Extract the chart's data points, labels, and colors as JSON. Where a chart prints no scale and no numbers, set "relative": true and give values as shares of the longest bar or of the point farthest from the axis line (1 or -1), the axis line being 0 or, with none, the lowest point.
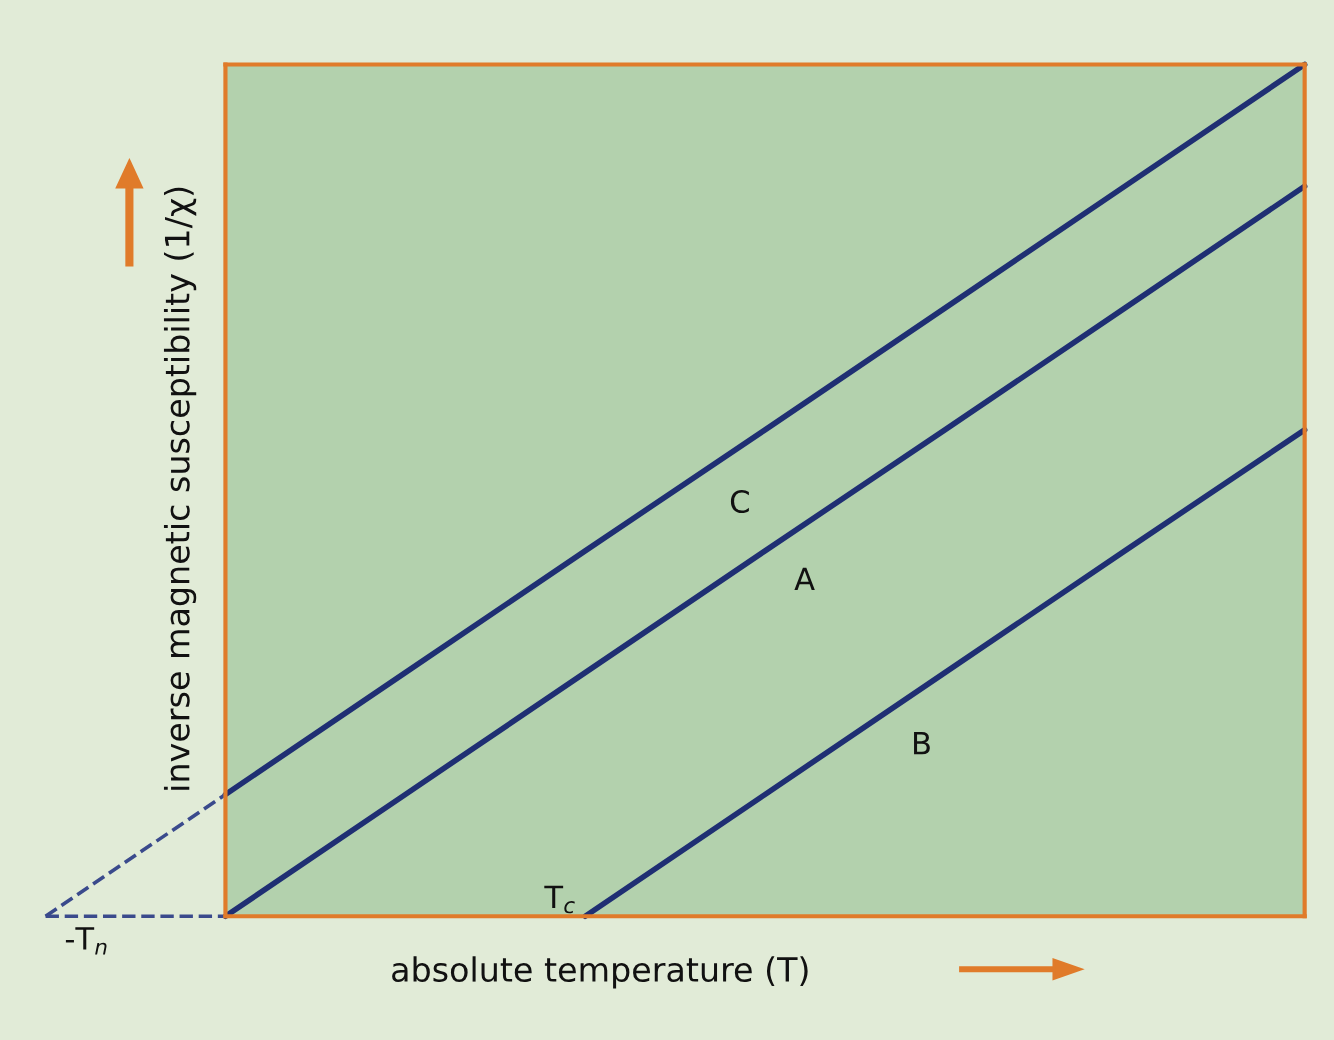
{
  "chart_data": {
    "type": "line",
    "relative": true,
    "xlabel": "absolute temperature (T)",
    "ylabel": "inverse magnetic susceptibility (1/χ)",
    "categories": [
      null,
      null,
      null,
      null,
      null,
      null,
      null,
      null
    ],
    "series": [
      {
        "name": "C",
        "color": "#1f2f73",
        "values": [
          null,
          0.143,
          0.286,
          0.429,
          0.571,
          0.714,
          0.857,
          1
        ]
      },
      {
        "name": "A",
        "color": "#1f2f73",
        "values": [
          null,
          0,
          0.143,
          0.286,
          0.429,
          0.571,
          0.714,
          0.857
        ]
      },
      {
        "name": "B",
        "color": "#1f2f73",
        "values": [
          null,
          null,
          null,
          0,
          0.143,
          0.286,
          0.429,
          0.571
        ]
      },
      {
        "color": "#3a4a8c",
        "line_style": "dashed",
        "values": [
          0,
          0.143,
          null,
          null,
          null,
          null,
          null,
          null
        ]
      },
      {
        "color": "#3a4a8c",
        "line_style": "dashed",
        "values": [
          0,
          0,
          null,
          null,
          null,
          null,
          null,
          null
        ]
      }
    ],
    "annotations": [
      "T$_{c}$",
      "-T$_{n}$"
    ],
    "legend": false
  }
}
